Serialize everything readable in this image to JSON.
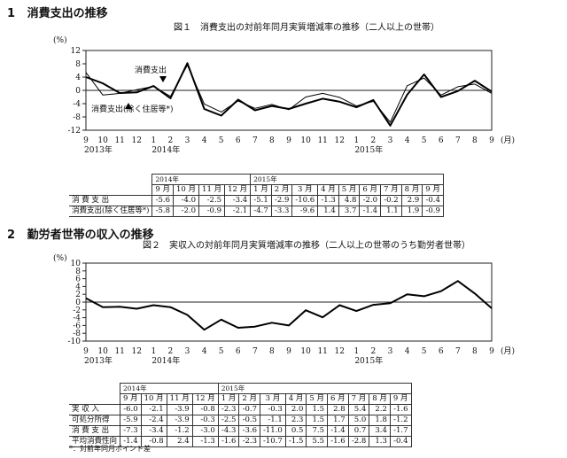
{
  "sections": {
    "s1": {
      "num": "1",
      "title": "消費支出の推移"
    },
    "s2": {
      "num": "2",
      "title": "勤労者世帯の収入の推移"
    }
  },
  "months": [
    "9",
    "10",
    "11",
    "12",
    "1",
    "2",
    "3",
    "4",
    "5",
    "6",
    "7",
    "8",
    "9",
    "10",
    "11",
    "12",
    "1",
    "2",
    "3",
    "4",
    "5",
    "6",
    "7",
    "8",
    "9"
  ],
  "chart_data": [
    {
      "type": "line",
      "title": "図１　消費支出の対前年同月実質増減率の推移（二人以上の世帯）",
      "ylabel": "(%)",
      "xlabel": "(月)",
      "ylim": [
        -12,
        12
      ],
      "yticks": [
        "12",
        "8",
        "4",
        "0",
        "-4",
        "-8",
        "-12"
      ],
      "year_labels": [
        "2013年",
        "2014年",
        "2015年"
      ],
      "series": [
        {
          "name": "消費支出",
          "values": [
            4.0,
            2.1,
            -0.8,
            -0.6,
            1.3,
            -2.4,
            8.2,
            -5.6,
            -7.6,
            -2.8,
            -6.0,
            -4.7,
            -5.6,
            -4.0,
            -2.5,
            -3.4,
            -5.1,
            -2.9,
            -10.6,
            -1.3,
            4.8,
            -2.0,
            -0.2,
            2.9,
            -0.4
          ]
        },
        {
          "name": "消費支出(除く住居等*)",
          "values": [
            5.4,
            -1.4,
            -0.9,
            0.2,
            1.2,
            -1.8,
            7.6,
            -4.1,
            -6.5,
            -3.2,
            -5.4,
            -4.2,
            -5.8,
            -2.0,
            -0.9,
            -2.1,
            -4.7,
            -3.3,
            -9.6,
            1.4,
            3.7,
            -1.4,
            1.1,
            1.9,
            -0.9
          ]
        }
      ]
    },
    {
      "type": "line",
      "title": "図２　実収入の対前年同月実質増減率の推移（二人以上の世帯のうち勤労者世帯）",
      "ylabel": "(%)",
      "xlabel": "(月)",
      "ylim": [
        -10,
        10
      ],
      "yticks": [
        "10",
        "8",
        "6",
        "4",
        "2",
        "0",
        "-2",
        "-4",
        "-6",
        "-8",
        "-10"
      ],
      "year_labels": [
        "2013年",
        "2014年",
        "2015年"
      ],
      "series": [
        {
          "name": "実収入",
          "values": [
            1.0,
            -1.3,
            -1.2,
            -1.7,
            -0.8,
            -1.3,
            -3.3,
            -7.1,
            -4.5,
            -6.6,
            -6.3,
            -5.3,
            -6.0,
            -2.1,
            -3.9,
            -0.8,
            -2.3,
            -0.7,
            -0.3,
            2.0,
            1.5,
            2.8,
            5.4,
            2.2,
            -1.6
          ]
        }
      ]
    }
  ],
  "table1": {
    "year_a": "2014年",
    "year_b": "2015年",
    "headers": [
      "9 月",
      "10 月",
      "11 月",
      "12 月",
      "1 月",
      "2 月",
      "3 月",
      "4 月",
      "5 月",
      "6 月",
      "7 月",
      "8 月",
      "9 月"
    ],
    "rows": [
      {
        "label": "消 費 支 出",
        "values": [
          "-5.6",
          "-4.0",
          "-2.5",
          "-3.4",
          "-5.1",
          "-2.9",
          "-10.6",
          "-1.3",
          "4.8",
          "-2.0",
          "-0.2",
          "2.9",
          "-0.4"
        ]
      },
      {
        "label": "消費支出(除く住居等*)",
        "values": [
          "-5.8",
          "-2.0",
          "-0.9",
          "-2.1",
          "-4.7",
          "-3.3",
          "-9.6",
          "1.4",
          "3.7",
          "-1.4",
          "1.1",
          "1.9",
          "-0.9"
        ]
      }
    ]
  },
  "table2": {
    "year_a": "2014年",
    "year_b": "2015年",
    "headers": [
      "9 月",
      "10 月",
      "11 月",
      "12 月",
      "1 月",
      "2 月",
      "3 月",
      "4 月",
      "5 月",
      "6 月",
      "7 月",
      "8 月",
      "9 月"
    ],
    "rows": [
      {
        "label": "実 収 入",
        "values": [
          "-6.0",
          "-2.1",
          "-3.9",
          "-0.8",
          "-2.3",
          "-0.7",
          "-0.3",
          "2.0",
          "1.5",
          "2.8",
          "5.4",
          "2.2",
          "-1.6"
        ]
      },
      {
        "label": "可処分所得",
        "values": [
          "-5.9",
          "-2.4",
          "-3.9",
          "-0.3",
          "-2.5",
          "-0.5",
          "-1.1",
          "2.3",
          "1.5",
          "1.7",
          "5.0",
          "1.8",
          "-1.2"
        ]
      },
      {
        "label": "消 費 支 出",
        "values": [
          "-7.3",
          "-3.4",
          "-1.2",
          "-3.0",
          "-4.3",
          "-3.6",
          "-11.0",
          "0.5",
          "7.5",
          "-1.4",
          "0.7",
          "3.4",
          "-1.7"
        ]
      },
      {
        "label": "平均消費性向",
        "values": [
          "-1.4",
          "-0.8",
          "2.4",
          "-1.3",
          "-1.6",
          "-2.3",
          "-10.7",
          "-1.5",
          "5.5",
          "-1.6",
          "-2.8",
          "1.3",
          "-0.4"
        ]
      }
    ]
  },
  "note": "*：対前年同月ポイント差"
}
